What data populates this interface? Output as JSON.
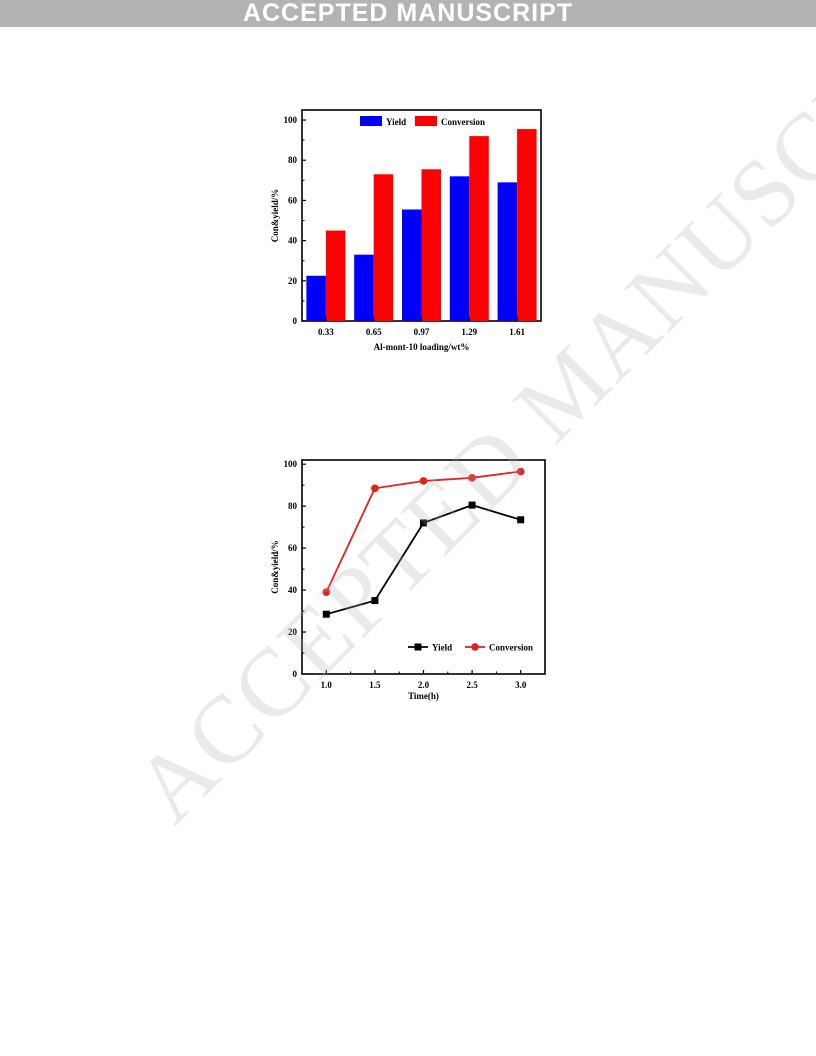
{
  "banner": {
    "text": "ACCEPTED MANUSCRIPT"
  },
  "watermark": {
    "text": "ACCEPTED MANUSCRIPT"
  },
  "chart_data": [
    {
      "type": "bar",
      "categories": [
        "0.33",
        "0.65",
        "0.97",
        "1.29",
        "1.61"
      ],
      "series": [
        {
          "name": "Yield",
          "values": [
            22.5,
            33,
            55.5,
            72,
            69
          ],
          "color": "#0000ff"
        },
        {
          "name": "Conversion",
          "values": [
            45,
            73,
            75.5,
            92,
            95.5
          ],
          "color": "#ff0000"
        }
      ],
      "xlabel": "Al-mont-10 loading/wt%",
      "ylabel": "Con&yield/%",
      "ylim": [
        0,
        105
      ],
      "yticks": [
        0,
        20,
        40,
        60,
        80,
        100
      ],
      "legend": "top-center"
    },
    {
      "type": "line",
      "x": [
        1.0,
        1.5,
        2.0,
        2.5,
        3.0
      ],
      "xticks": [
        "1.0",
        "1.5",
        "2.0",
        "2.5",
        "3.0"
      ],
      "series": [
        {
          "name": "Yield",
          "values": [
            28.5,
            35,
            72,
            80.5,
            73.5
          ],
          "color": "#000000",
          "marker": "square"
        },
        {
          "name": "Conversion",
          "values": [
            39,
            88.5,
            92,
            93.5,
            96.5
          ],
          "color": "#e0211c",
          "marker": "circle"
        }
      ],
      "xlabel": "Time(h)",
      "ylabel": "Con&yield/%",
      "xlim": [
        0.75,
        3.25
      ],
      "ylim": [
        0,
        102
      ],
      "yticks": [
        0,
        20,
        40,
        60,
        80,
        100
      ],
      "legend": "bottom-right"
    }
  ]
}
